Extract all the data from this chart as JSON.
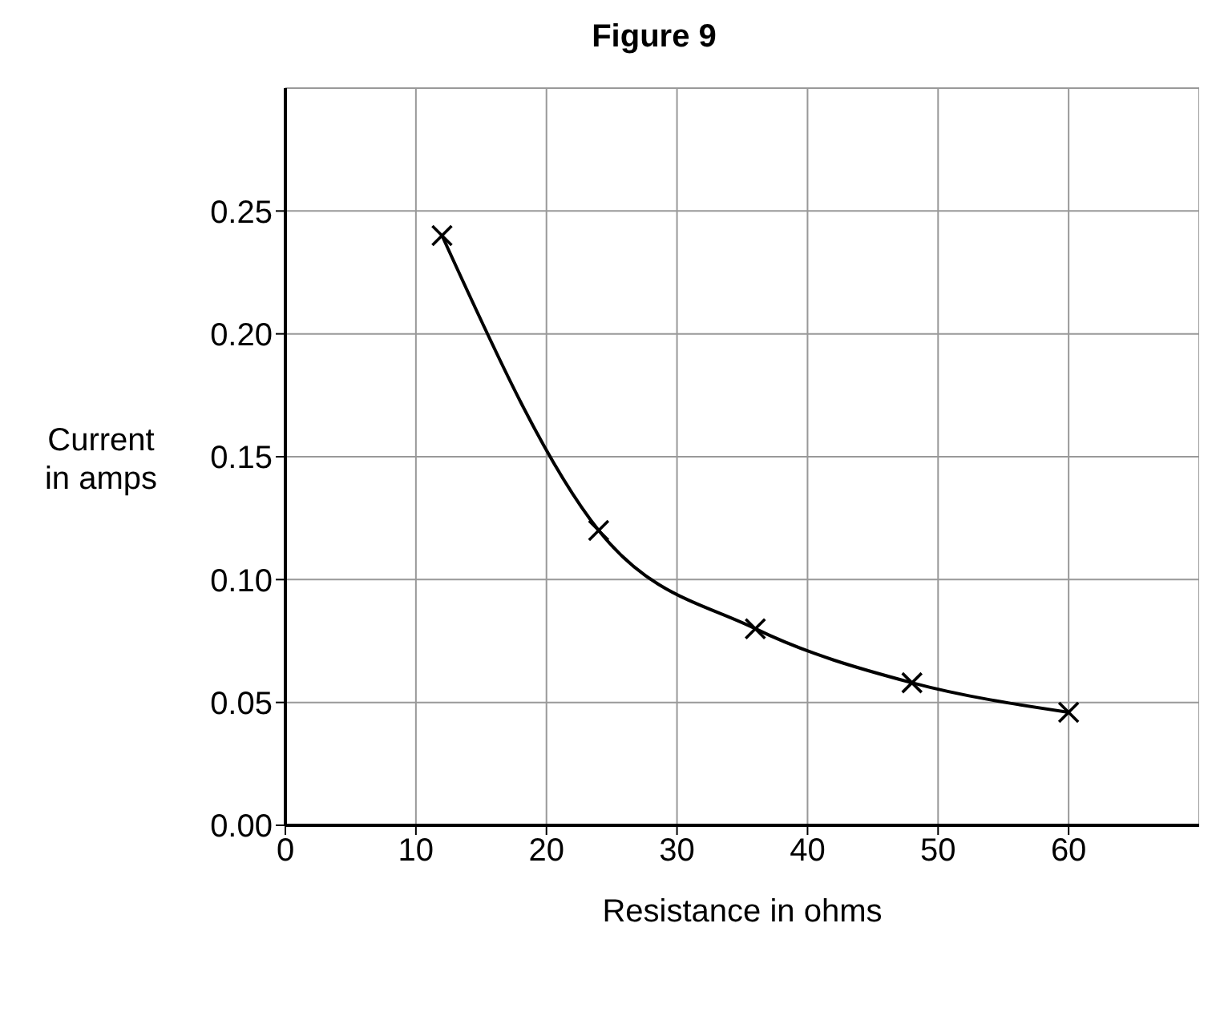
{
  "chart_data": {
    "type": "scatter",
    "title": "Figure 9",
    "xlabel": "Resistance in ohms",
    "ylabel": "Current in amps",
    "x": [
      12,
      24,
      36,
      48,
      60
    ],
    "series": [
      {
        "type": "line",
        "color": "#000000",
        "marker": "none",
        "values": [
          0.24,
          0.12,
          0.08,
          0.058,
          0.046
        ]
      },
      {
        "color": "#000000",
        "marker": "cross",
        "values": [
          0.24,
          0.12,
          0.08,
          0.058,
          0.046
        ]
      }
    ],
    "xlim": [
      0,
      70
    ],
    "xticks": [
      0,
      10,
      20,
      30,
      40,
      50,
      60
    ],
    "ylim": [
      0,
      0.3
    ],
    "yticks": [
      {
        "value": 0,
        "label": "0.00"
      },
      {
        "value": 0.05,
        "label": "0.05"
      },
      {
        "value": 0.1,
        "label": "0.10"
      },
      {
        "value": 0.15,
        "label": "0.15"
      },
      {
        "value": 0.2,
        "label": "0.20"
      },
      {
        "value": 0.25,
        "label": "0.25"
      }
    ],
    "grid": true
  }
}
